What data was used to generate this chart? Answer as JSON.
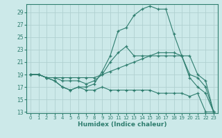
{
  "title": "",
  "xlabel": "Humidex (Indice chaleur)",
  "ylabel": "",
  "bg_color": "#cce9e9",
  "grid_color": "#b8d8d8",
  "line_color": "#2e7d6e",
  "ylim": [
    13,
    30
  ],
  "xlim": [
    -0.5,
    23.5
  ],
  "yticks": [
    13,
    15,
    17,
    19,
    21,
    23,
    25,
    27,
    29
  ],
  "xticks": [
    0,
    1,
    2,
    3,
    4,
    5,
    6,
    7,
    8,
    9,
    10,
    11,
    12,
    13,
    14,
    15,
    16,
    17,
    18,
    19,
    20,
    21,
    22,
    23
  ],
  "curve1_x": [
    0,
    1,
    2,
    3,
    4,
    5,
    6,
    7,
    8,
    9,
    10,
    11,
    12,
    13,
    14,
    15,
    16,
    17,
    18,
    19,
    20,
    21,
    22,
    23
  ],
  "curve1_y": [
    19,
    19,
    18.5,
    18,
    17,
    16.5,
    17,
    16.5,
    16.5,
    17,
    16.5,
    16.5,
    16.5,
    16.5,
    16.5,
    16.5,
    16,
    16,
    16,
    16,
    15.5,
    16,
    13,
    13
  ],
  "curve2_x": [
    0,
    1,
    2,
    3,
    4,
    5,
    6,
    7,
    8,
    9,
    10,
    11,
    12,
    13,
    14,
    15,
    16,
    17,
    18,
    19,
    20,
    21,
    22,
    23
  ],
  "curve2_y": [
    19,
    19,
    18.5,
    18.5,
    18.5,
    18.5,
    18.5,
    18.5,
    18.5,
    19,
    19.5,
    20,
    20.5,
    21,
    21.5,
    22,
    22.5,
    22.5,
    22.5,
    22,
    19,
    18.5,
    17,
    13
  ],
  "curve3_x": [
    0,
    1,
    2,
    3,
    4,
    5,
    6,
    7,
    8,
    9,
    10,
    11,
    12,
    13,
    14,
    15,
    16,
    17,
    18,
    19,
    20,
    21,
    22,
    23
  ],
  "curve3_y": [
    19,
    19,
    18.5,
    18.5,
    18,
    18,
    18,
    17.5,
    18,
    19,
    21,
    22.5,
    23.5,
    22,
    22,
    22,
    22,
    22,
    22,
    22,
    22,
    19,
    18,
    13
  ],
  "curve4_x": [
    0,
    1,
    2,
    3,
    4,
    5,
    6,
    7,
    8,
    9,
    10,
    11,
    12,
    13,
    14,
    15,
    16,
    17,
    18,
    19,
    20,
    21,
    22,
    23
  ],
  "curve4_y": [
    19,
    19,
    18.5,
    18,
    17,
    16.5,
    17,
    17,
    17.5,
    19.5,
    22,
    26,
    26.5,
    28.5,
    29.5,
    30,
    29.5,
    29.5,
    25.5,
    22,
    18.5,
    17,
    16,
    13
  ]
}
